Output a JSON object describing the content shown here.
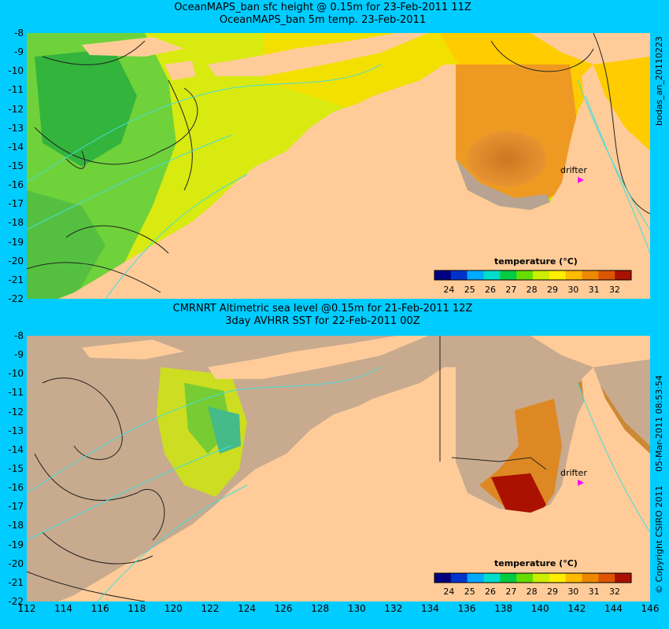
{
  "top_panel": {
    "title_line1": "OceanMAPS_ban sfc height @ 0.15m for 23-Feb-2011 11Z",
    "title_line2": "OceanMAPS_ban 5m temp. 23-Feb-2011",
    "side_label": "bodas_an_20110223",
    "drifter_label": "drifter",
    "legend_title": "temperature (°C)"
  },
  "bottom_panel": {
    "title_line1": "CMRNRT Altimetric sea level  @0.15m  for 21-Feb-2011 12Z",
    "title_line2": "3day AVHRR SST for 22-Feb-2011 00Z",
    "side_label": "05-Mar-2011 08:53:54",
    "side_copyright": "© Copyright CSIRO 2011",
    "drifter_label": "drifter",
    "legend_title": "temperature (°C)"
  },
  "axes": {
    "y_ticks": [
      "-8",
      "-9",
      "-10",
      "-11",
      "-12",
      "-13",
      "-14",
      "-15",
      "-16",
      "-17",
      "-18",
      "-19",
      "-20",
      "-21",
      "-22"
    ],
    "x_ticks": [
      "112",
      "114",
      "116",
      "118",
      "120",
      "122",
      "124",
      "126",
      "128",
      "130",
      "132",
      "134",
      "136",
      "138",
      "140",
      "142",
      "144",
      "146"
    ]
  },
  "legend": {
    "ticks": [
      "24",
      "25",
      "26",
      "27",
      "28",
      "29",
      "30",
      "31",
      "32"
    ],
    "colors": [
      "#000080",
      "#0033cc",
      "#00aaff",
      "#00ddcc",
      "#00cc44",
      "#66dd00",
      "#ccee00",
      "#ffee00",
      "#ffbb00",
      "#ee8800",
      "#dd5500",
      "#aa1100"
    ]
  },
  "colors": {
    "background": "#00ccff",
    "land": "#ffcc99",
    "no_data": "#c8aa8e",
    "drifter": "#ff00ff"
  }
}
